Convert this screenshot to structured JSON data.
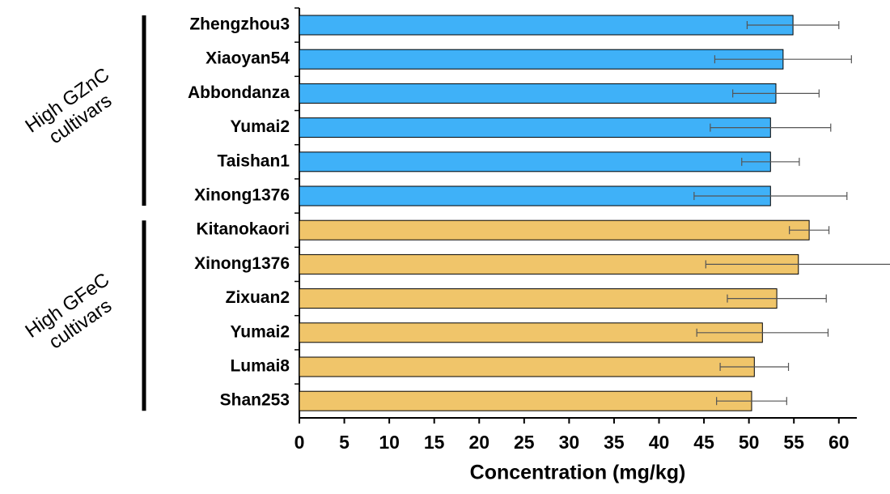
{
  "chart_data": {
    "type": "bar",
    "orientation": "horizontal",
    "xlabel": "Concentration (mg/kg)",
    "xlim": [
      0,
      62
    ],
    "xticks": [
      0,
      5,
      10,
      15,
      20,
      25,
      30,
      35,
      40,
      45,
      50,
      55,
      60
    ],
    "groups": [
      {
        "label": [
          "High GZnC",
          "cultivars"
        ],
        "color": "#3fb1f8",
        "categories": [
          "Zhengzhou3",
          "Xiaoyan54",
          "Abbondanza",
          "Yumai2",
          "Taishan1",
          "Xinong1376"
        ],
        "values": [
          54.9,
          53.8,
          53.0,
          52.4,
          52.4,
          52.4
        ],
        "errors": [
          5.1,
          7.6,
          4.8,
          6.7,
          3.2,
          8.5
        ]
      },
      {
        "label": [
          "High GFeC",
          "cultivars"
        ],
        "color": "#f0c56a",
        "categories": [
          "Kitanokaori",
          "Xinong1376",
          "Zixuan2",
          "Yumai2",
          "Lumai8",
          "Shan253"
        ],
        "values": [
          56.7,
          55.5,
          53.1,
          51.5,
          50.6,
          50.3
        ],
        "errors": [
          2.2,
          10.3,
          5.5,
          7.3,
          3.8,
          3.9
        ]
      }
    ]
  }
}
